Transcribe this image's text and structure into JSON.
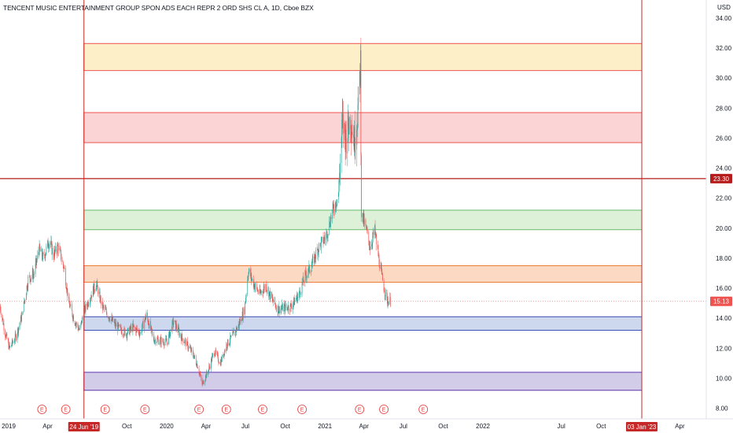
{
  "header": {
    "title": "TENCENT MUSIC ENTERTAINMENT GROUP SPON ADS EACH REPR 2 ORD SHS CL A, 1D, Cboe BZX",
    "currency": "USD"
  },
  "colors": {
    "up": "#26a69a",
    "down": "#ef5350",
    "vline": "#c62828",
    "hline": "#b71c1c",
    "earnings": "#e53935"
  },
  "chart_data": {
    "type": "candlestick",
    "title": "TENCENT MUSIC ENTERTAINMENT GROUP SPON ADS EACH REPR 2 ORD SHS CL A, 1D, Cboe BZX",
    "ylim": [
      7.3,
      35.2
    ],
    "y_ticks": [
      8,
      10,
      12,
      14,
      16,
      18,
      20,
      22,
      24,
      26,
      28,
      30,
      32,
      34
    ],
    "x_ticks": [
      {
        "label": "2019",
        "date": "2019-01-01"
      },
      {
        "label": "Apr",
        "date": "2019-04-01"
      },
      {
        "label": "Oct",
        "date": "2019-10-01"
      },
      {
        "label": "2020",
        "date": "2020-01-01"
      },
      {
        "label": "Apr",
        "date": "2020-04-01"
      },
      {
        "label": "Jul",
        "date": "2020-07-01"
      },
      {
        "label": "Oct",
        "date": "2020-10-01"
      },
      {
        "label": "2021",
        "date": "2021-01-01"
      },
      {
        "label": "Apr",
        "date": "2021-04-01"
      },
      {
        "label": "Jul",
        "date": "2021-07-01"
      },
      {
        "label": "Oct",
        "date": "2021-10-01"
      },
      {
        "label": "2022",
        "date": "2022-01-01"
      },
      {
        "label": "Jul",
        "date": "2022-07-01"
      },
      {
        "label": "Oct",
        "date": "2022-10-01"
      },
      {
        "label": "Apr",
        "date": "2023-04-01"
      }
    ],
    "x_range": [
      "2018-12-12",
      "2023-06-01"
    ],
    "last_price": {
      "value": 15.13,
      "label": "15.13"
    },
    "horizontal_line": {
      "value": 23.3,
      "label": "23.30"
    },
    "vertical_lines": [
      {
        "date": "2019-06-24",
        "label": "24 Jun '19"
      },
      {
        "date": "2023-01-03",
        "label": "03 Jan '23"
      }
    ],
    "zones": [
      {
        "low": 30.5,
        "high": 32.3,
        "fill": "#fdf0c8",
        "stroke": "#ef5350"
      },
      {
        "low": 25.7,
        "high": 27.7,
        "fill": "#fbd5d5",
        "stroke": "#ef5350"
      },
      {
        "low": 19.9,
        "high": 21.2,
        "fill": "#dcf1d7",
        "stroke": "#66bb6a"
      },
      {
        "low": 16.4,
        "high": 17.5,
        "fill": "#fbd9c3",
        "stroke": "#ef7b3b"
      },
      {
        "low": 13.2,
        "high": 14.1,
        "fill": "#cdd7ed",
        "stroke": "#3f51b5"
      },
      {
        "low": 9.2,
        "high": 10.4,
        "fill": "#d3cce9",
        "stroke": "#5e35b1"
      }
    ],
    "earnings_markers": [
      {
        "date": "2019-03-19",
        "label": "E"
      },
      {
        "date": "2019-05-13",
        "label": "E"
      },
      {
        "date": "2019-08-12",
        "label": "E"
      },
      {
        "date": "2019-11-12",
        "label": "E"
      },
      {
        "date": "2020-03-16",
        "label": "E"
      },
      {
        "date": "2020-05-18",
        "label": "E"
      },
      {
        "date": "2020-08-10",
        "label": "E"
      },
      {
        "date": "2020-11-09",
        "label": "E"
      },
      {
        "date": "2021-03-22",
        "label": "E"
      },
      {
        "date": "2021-05-17",
        "label": "E"
      },
      {
        "date": "2021-08-16",
        "label": "E"
      }
    ],
    "price_path": [
      [
        "2018-12-12",
        14.8
      ],
      [
        "2018-12-24",
        13.0
      ],
      [
        "2019-01-03",
        12.0
      ],
      [
        "2019-01-18",
        12.8
      ],
      [
        "2019-02-01",
        14.2
      ],
      [
        "2019-02-15",
        16.6
      ],
      [
        "2019-03-01",
        17.0
      ],
      [
        "2019-03-12",
        18.6
      ],
      [
        "2019-03-22",
        18.0
      ],
      [
        "2019-04-05",
        19.2
      ],
      [
        "2019-04-15",
        18.2
      ],
      [
        "2019-04-26",
        18.8
      ],
      [
        "2019-05-10",
        17.2
      ],
      [
        "2019-05-20",
        15.0
      ],
      [
        "2019-06-03",
        13.8
      ],
      [
        "2019-06-14",
        13.2
      ],
      [
        "2019-06-24",
        14.4
      ],
      [
        "2019-07-08",
        15.4
      ],
      [
        "2019-07-22",
        16.3
      ],
      [
        "2019-08-05",
        14.8
      ],
      [
        "2019-08-19",
        14.2
      ],
      [
        "2019-09-03",
        13.6
      ],
      [
        "2019-09-17",
        13.2
      ],
      [
        "2019-10-01",
        13.0
      ],
      [
        "2019-10-15",
        13.4
      ],
      [
        "2019-11-01",
        13.0
      ],
      [
        "2019-11-15",
        14.2
      ],
      [
        "2019-12-02",
        12.6
      ],
      [
        "2019-12-16",
        12.5
      ],
      [
        "2020-01-02",
        12.4
      ],
      [
        "2020-01-17",
        13.8
      ],
      [
        "2020-02-03",
        12.8
      ],
      [
        "2020-02-18",
        12.2
      ],
      [
        "2020-03-02",
        11.6
      ],
      [
        "2020-03-13",
        10.8
      ],
      [
        "2020-03-23",
        9.6
      ],
      [
        "2020-04-06",
        10.5
      ],
      [
        "2020-04-20",
        11.8
      ],
      [
        "2020-05-04",
        11.0
      ],
      [
        "2020-05-18",
        12.2
      ],
      [
        "2020-06-01",
        12.8
      ],
      [
        "2020-06-15",
        13.5
      ],
      [
        "2020-06-29",
        14.6
      ],
      [
        "2020-07-08",
        17.2
      ],
      [
        "2020-07-20",
        16.3
      ],
      [
        "2020-08-03",
        15.6
      ],
      [
        "2020-08-17",
        16.2
      ],
      [
        "2020-09-01",
        15.2
      ],
      [
        "2020-09-15",
        14.6
      ],
      [
        "2020-10-01",
        14.7
      ],
      [
        "2020-10-15",
        14.8
      ],
      [
        "2020-11-02",
        15.6
      ],
      [
        "2020-11-16",
        16.8
      ],
      [
        "2020-12-01",
        17.5
      ],
      [
        "2020-12-15",
        18.6
      ],
      [
        "2021-01-04",
        19.5
      ],
      [
        "2021-01-19",
        21.2
      ],
      [
        "2021-02-01",
        22.2
      ],
      [
        "2021-02-10",
        27.0
      ],
      [
        "2021-02-18",
        26.0
      ],
      [
        "2021-03-01",
        27.5
      ],
      [
        "2021-03-10",
        25.8
      ],
      [
        "2021-03-19",
        28.2
      ],
      [
        "2021-03-24",
        31.0
      ],
      [
        "2021-03-26",
        21.0
      ],
      [
        "2021-04-05",
        20.0
      ],
      [
        "2021-04-15",
        18.8
      ],
      [
        "2021-04-26",
        19.8
      ],
      [
        "2021-05-05",
        18.0
      ],
      [
        "2021-05-14",
        16.5
      ],
      [
        "2021-05-24",
        15.2
      ],
      [
        "2021-06-01",
        15.13
      ]
    ]
  }
}
